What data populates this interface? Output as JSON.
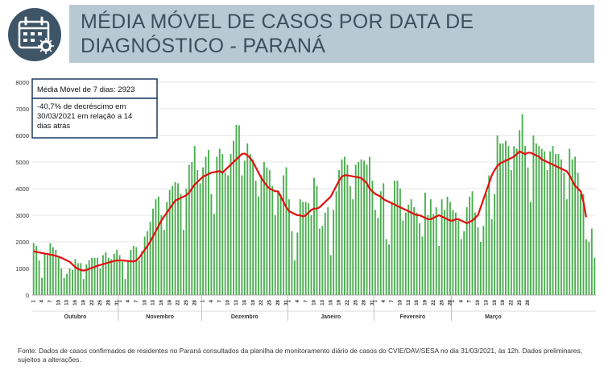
{
  "header": {
    "title": "MÉDIA MÓVEL DE CASOS POR DATA DE DIAGNÓSTICO - PARANÁ",
    "icon": "calendar-virus-icon",
    "icon_color": "#3d5566",
    "band_color": "#b7c9d3"
  },
  "annotation": {
    "average_line": "Média Móvel de 7 dias: 2923",
    "change_text": "-40,7% de decréscimo em 30/03/2021 em relação a 14 dias atrás"
  },
  "footnote": "Fonte: Dados de casos confirmados de residentes no Paraná consultados da planilha de monitoramento diário de casos do CVIE/DAV/SESA no dia 31/03/2021, às 12h. Dados preliminares, sujeitos a alterações.",
  "chart_data": {
    "type": "bar",
    "title": "",
    "xlabel": "",
    "ylabel": "",
    "ylim": [
      0,
      8000
    ],
    "yticks": [
      0,
      1000,
      2000,
      3000,
      4000,
      5000,
      6000,
      7000,
      8000
    ],
    "grid": true,
    "bar_color": "#4caf50",
    "line_color": "#e01010",
    "months": [
      {
        "name": "Outubro",
        "days": 31
      },
      {
        "name": "Novembro",
        "days": 30
      },
      {
        "name": "Dezembro",
        "days": 31
      },
      {
        "name": "Janeiro",
        "days": 31
      },
      {
        "name": "Fevereiro",
        "days": 28
      },
      {
        "name": "Março",
        "days": 30
      }
    ],
    "day_tick_step": 3,
    "series": [
      {
        "type": "bar",
        "values": [
          1950,
          1850,
          1300,
          650,
          1550,
          1500,
          1950,
          1800,
          1700,
          1400,
          1000,
          650,
          800,
          1000,
          950,
          1350,
          1200,
          1200,
          600,
          1150,
          1300,
          1400,
          1400,
          1400,
          1000,
          1500,
          1600,
          1400,
          1350,
          1550,
          1700,
          1500,
          1250,
          600,
          1250,
          1700,
          1850,
          1800,
          1300,
          1650,
          2200,
          2400,
          2750,
          3250,
          3600,
          3700,
          3000,
          2450,
          3500,
          3950,
          4100,
          4250,
          4200,
          3800,
          2450,
          4000,
          4900,
          5000,
          5600,
          4700,
          4200,
          4800,
          5200,
          5450,
          3800,
          3050,
          5200,
          5500,
          5300,
          4600,
          4500,
          5300,
          5800,
          6400,
          6380,
          4500,
          5050,
          5700,
          5300,
          5100,
          4300,
          3700,
          4500,
          5000,
          4800,
          4700,
          4100,
          3000,
          3900,
          3800,
          4500,
          4800,
          3600,
          2400,
          1300,
          2350,
          3600,
          3500,
          3500,
          3450,
          3000,
          4400,
          4100,
          2500,
          2600,
          3100,
          3300,
          1500,
          3200,
          3900,
          4700,
          5100,
          5200,
          4900,
          4100,
          3600,
          4900,
          5000,
          5100,
          5050,
          4900,
          5200,
          4300,
          3200,
          2900,
          3900,
          4200,
          2100,
          1900,
          3500,
          4300,
          4300,
          4000,
          2800,
          3100,
          3400,
          3600,
          3300,
          3100,
          2700,
          2200,
          3850,
          3000,
          3600,
          3050,
          3300,
          1850,
          3600,
          3200,
          3700,
          3500,
          3200,
          3100,
          2800,
          2100,
          2400,
          3300,
          3700,
          3900,
          3100,
          2550,
          2000,
          2600,
          3800,
          4500,
          2850,
          3800,
          6000,
          5700,
          5700,
          5800,
          5600,
          4700,
          5600,
          5500,
          6200,
          6800,
          5600,
          4800,
          3500,
          6000,
          5700,
          5600,
          5500,
          5400,
          4700,
          5400,
          5600,
          5300,
          5300,
          5100,
          4600,
          3600,
          5500,
          5100,
          5200,
          4600,
          3800,
          3800,
          2100,
          2000,
          2500,
          1400
        ]
      },
      {
        "type": "line",
        "name": "Média Móvel de 7 dias",
        "values": [
          1650,
          1620,
          1600,
          1580,
          1560,
          1540,
          1520,
          1500,
          1470,
          1440,
          1400,
          1350,
          1300,
          1250,
          1150,
          1050,
          980,
          940,
          920,
          940,
          980,
          1020,
          1060,
          1100,
          1130,
          1160,
          1190,
          1220,
          1250,
          1280,
          1300,
          1300,
          1300,
          1290,
          1280,
          1270,
          1260,
          1300,
          1400,
          1550,
          1700,
          1850,
          2000,
          2200,
          2400,
          2600,
          2800,
          2950,
          3100,
          3250,
          3400,
          3550,
          3600,
          3650,
          3700,
          3750,
          3850,
          4000,
          4150,
          4250,
          4350,
          4450,
          4500,
          4550,
          4600,
          4620,
          4640,
          4660,
          4600,
          4700,
          4800,
          4900,
          5000,
          5100,
          5200,
          5300,
          5320,
          5250,
          5150,
          5000,
          4800,
          4600,
          4400,
          4250,
          4100,
          4000,
          3950,
          3900,
          3900,
          3700,
          3500,
          3300,
          3150,
          3100,
          3050,
          3000,
          3000,
          2950,
          3000,
          3100,
          3200,
          3250,
          3250,
          3300,
          3400,
          3500,
          3600,
          3700,
          3900,
          4100,
          4300,
          4450,
          4500,
          4500,
          4480,
          4460,
          4440,
          4420,
          4400,
          4300,
          4200,
          4000,
          3900,
          3800,
          3750,
          3700,
          3600,
          3550,
          3500,
          3450,
          3400,
          3350,
          3300,
          3250,
          3200,
          3150,
          3100,
          3050,
          3000,
          3000,
          2950,
          2900,
          2850,
          2850,
          2900,
          2950,
          3000,
          2950,
          2900,
          2850,
          2800,
          2800,
          2850,
          2850,
          2800,
          2750,
          2700,
          2750,
          2800,
          2900,
          3000,
          3300,
          3600,
          3900,
          4200,
          4500,
          4700,
          4850,
          4950,
          5000,
          5050,
          5100,
          5150,
          5200,
          5300,
          5400,
          5350,
          5300,
          5350,
          5350,
          5300,
          5250,
          5200,
          5100,
          5050,
          5000,
          4950,
          4900,
          4850,
          4800,
          4750,
          4700,
          4650,
          4500,
          4300,
          4100,
          4000,
          3900,
          3500,
          2923
        ]
      }
    ]
  }
}
